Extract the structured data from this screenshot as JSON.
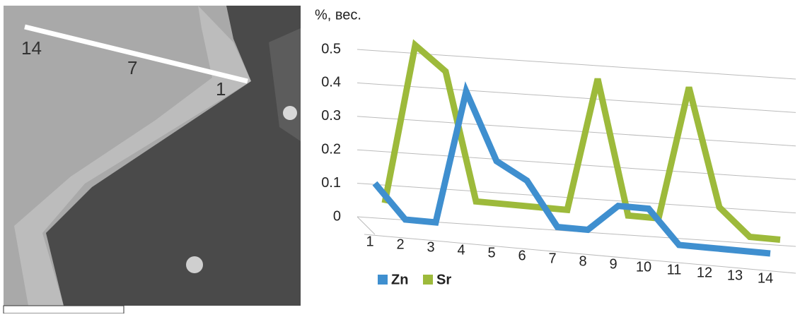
{
  "image": {
    "labels": [
      "14",
      "7",
      "1"
    ]
  },
  "chart_data": {
    "type": "line",
    "y_label": "%, вес.",
    "categories": [
      "1",
      "2",
      "3",
      "4",
      "5",
      "6",
      "7",
      "8",
      "9",
      "10",
      "11",
      "12",
      "13",
      "14"
    ],
    "series": [
      {
        "name": "Zn",
        "color": "#3f8fcf",
        "values": [
          0.1,
          0.0,
          0.0,
          0.4,
          0.2,
          0.15,
          0.02,
          0.02,
          0.1,
          0.1,
          0.0,
          0.0,
          0.0,
          0.0
        ]
      },
      {
        "name": "Sr",
        "color": "#9dba3b",
        "values": [
          0.02,
          0.5,
          0.43,
          0.05,
          0.05,
          0.05,
          0.05,
          0.45,
          0.05,
          0.05,
          0.45,
          0.1,
          0.02,
          0.02
        ]
      }
    ],
    "ylim": [
      0,
      0.5
    ],
    "yticks": [
      0,
      0.1,
      0.2,
      0.3,
      0.4,
      0.5
    ],
    "grid": true,
    "legend": "bottom-left"
  }
}
